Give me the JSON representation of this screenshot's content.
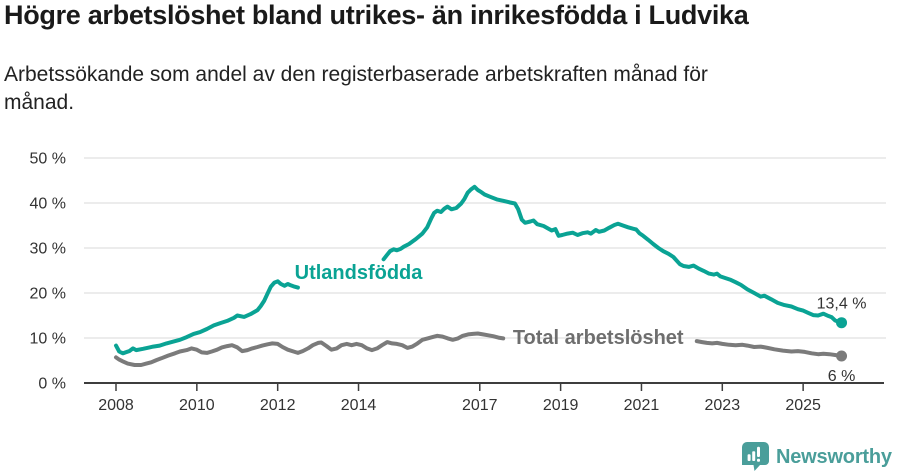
{
  "chart_data": {
    "type": "line",
    "title": "Högre arbetslöshet bland utrikes- än inrikesfödda i Ludvika",
    "subtitle": "Arbetssökande som andel av den registerbaserade arbetskraften månad för månad.",
    "xlim": [
      2007.2,
      2027.1
    ],
    "ylim": [
      0,
      50
    ],
    "grid": "horizontal",
    "legend": "inline-labels",
    "x_axis": {
      "ticks": [
        {
          "year": 2008,
          "label": "2008"
        },
        {
          "year": 2010,
          "label": "2010"
        },
        {
          "year": 2012,
          "label": "2012"
        },
        {
          "year": 2014,
          "label": "2014"
        },
        {
          "year": 2017,
          "label": "2017"
        },
        {
          "year": 2019,
          "label": "2019"
        },
        {
          "year": 2021,
          "label": "2021"
        },
        {
          "year": 2023,
          "label": "2023"
        },
        {
          "year": 2025,
          "label": "2025"
        }
      ]
    },
    "y_axis": {
      "ticks": [
        {
          "value": 0,
          "label": "0 %"
        },
        {
          "value": 10,
          "label": "10 %"
        },
        {
          "value": 20,
          "label": "20 %"
        },
        {
          "value": 30,
          "label": "30 %"
        },
        {
          "value": 40,
          "label": "40 %"
        },
        {
          "value": 50,
          "label": "50 %"
        }
      ]
    },
    "series": [
      {
        "id": "utlandsfodda",
        "name": "Utlandsfödda",
        "color": "#0aa394",
        "label": {
          "text": "Utlandsfödda",
          "year": 2014.0,
          "value": 24.7
        },
        "label_color": "#0aa394",
        "end_label": "13,4 %",
        "end_label_position": "above",
        "end_value": 13.4,
        "points": [
          [
            2008.0,
            8.3
          ],
          [
            2008.08,
            7.0
          ],
          [
            2008.17,
            6.6
          ],
          [
            2008.33,
            7.1
          ],
          [
            2008.42,
            7.7
          ],
          [
            2008.5,
            7.3
          ],
          [
            2008.67,
            7.6
          ],
          [
            2008.83,
            7.9
          ],
          [
            2008.92,
            8.1
          ],
          [
            2009.08,
            8.3
          ],
          [
            2009.25,
            8.8
          ],
          [
            2009.42,
            9.2
          ],
          [
            2009.58,
            9.6
          ],
          [
            2009.75,
            10.2
          ],
          [
            2009.92,
            10.9
          ],
          [
            2010.08,
            11.3
          ],
          [
            2010.25,
            12.0
          ],
          [
            2010.42,
            12.8
          ],
          [
            2010.58,
            13.3
          ],
          [
            2010.75,
            13.8
          ],
          [
            2010.92,
            14.5
          ],
          [
            2011.0,
            15.0
          ],
          [
            2011.17,
            14.7
          ],
          [
            2011.33,
            15.3
          ],
          [
            2011.5,
            16.2
          ],
          [
            2011.58,
            17.1
          ],
          [
            2011.67,
            18.3
          ],
          [
            2011.75,
            19.9
          ],
          [
            2011.83,
            21.4
          ],
          [
            2011.92,
            22.3
          ],
          [
            2012.0,
            22.6
          ],
          [
            2012.08,
            22.0
          ],
          [
            2012.17,
            21.6
          ],
          [
            2012.25,
            22.0
          ],
          [
            2012.33,
            21.7
          ],
          [
            2012.42,
            21.4
          ],
          [
            2012.5,
            21.2
          ],
          null,
          [
            2014.62,
            27.5
          ],
          [
            2014.7,
            28.4
          ],
          [
            2014.78,
            29.3
          ],
          [
            2014.87,
            29.7
          ],
          [
            2014.95,
            29.5
          ],
          [
            2015.04,
            29.8
          ],
          [
            2015.12,
            30.3
          ],
          [
            2015.25,
            30.9
          ],
          [
            2015.42,
            32.0
          ],
          [
            2015.58,
            33.2
          ],
          [
            2015.7,
            34.6
          ],
          [
            2015.8,
            36.6
          ],
          [
            2015.87,
            37.8
          ],
          [
            2015.95,
            38.3
          ],
          [
            2016.04,
            38.0
          ],
          [
            2016.12,
            38.7
          ],
          [
            2016.2,
            39.2
          ],
          [
            2016.3,
            38.6
          ],
          [
            2016.42,
            38.9
          ],
          [
            2016.54,
            39.9
          ],
          [
            2016.62,
            40.9
          ],
          [
            2016.7,
            42.3
          ],
          [
            2016.78,
            43.0
          ],
          [
            2016.87,
            43.6
          ],
          [
            2016.95,
            42.9
          ],
          [
            2017.04,
            42.4
          ],
          [
            2017.12,
            41.9
          ],
          [
            2017.25,
            41.4
          ],
          [
            2017.42,
            40.8
          ],
          [
            2017.58,
            40.5
          ],
          [
            2017.75,
            40.1
          ],
          [
            2017.87,
            39.9
          ],
          [
            2017.95,
            38.6
          ],
          [
            2018.04,
            36.3
          ],
          [
            2018.12,
            35.6
          ],
          [
            2018.25,
            35.9
          ],
          [
            2018.33,
            36.1
          ],
          [
            2018.42,
            35.3
          ],
          [
            2018.58,
            34.9
          ],
          [
            2018.7,
            34.3
          ],
          [
            2018.78,
            33.9
          ],
          [
            2018.87,
            34.2
          ],
          [
            2018.95,
            32.7
          ],
          [
            2019.04,
            32.9
          ],
          [
            2019.17,
            33.2
          ],
          [
            2019.3,
            33.4
          ],
          [
            2019.42,
            32.9
          ],
          [
            2019.54,
            33.3
          ],
          [
            2019.67,
            33.5
          ],
          [
            2019.75,
            33.2
          ],
          [
            2019.87,
            34.0
          ],
          [
            2019.95,
            33.6
          ],
          [
            2020.08,
            33.9
          ],
          [
            2020.2,
            34.5
          ],
          [
            2020.33,
            35.1
          ],
          [
            2020.42,
            35.4
          ],
          [
            2020.54,
            35.0
          ],
          [
            2020.67,
            34.6
          ],
          [
            2020.79,
            34.3
          ],
          [
            2020.87,
            34.1
          ],
          [
            2020.95,
            33.3
          ],
          [
            2021.04,
            32.7
          ],
          [
            2021.17,
            31.8
          ],
          [
            2021.29,
            30.9
          ],
          [
            2021.42,
            30.0
          ],
          [
            2021.54,
            29.3
          ],
          [
            2021.67,
            28.7
          ],
          [
            2021.79,
            28.0
          ],
          [
            2021.87,
            27.2
          ],
          [
            2021.95,
            26.4
          ],
          [
            2022.04,
            26.0
          ],
          [
            2022.17,
            25.8
          ],
          [
            2022.29,
            26.1
          ],
          [
            2022.42,
            25.4
          ],
          [
            2022.54,
            24.9
          ],
          [
            2022.67,
            24.3
          ],
          [
            2022.79,
            24.1
          ],
          [
            2022.87,
            24.3
          ],
          [
            2022.95,
            23.7
          ],
          [
            2023.08,
            23.3
          ],
          [
            2023.21,
            22.9
          ],
          [
            2023.33,
            22.4
          ],
          [
            2023.46,
            21.8
          ],
          [
            2023.62,
            20.8
          ],
          [
            2023.79,
            20.0
          ],
          [
            2023.95,
            19.2
          ],
          [
            2024.04,
            19.4
          ],
          [
            2024.21,
            18.6
          ],
          [
            2024.37,
            17.8
          ],
          [
            2024.54,
            17.3
          ],
          [
            2024.71,
            17.0
          ],
          [
            2024.87,
            16.4
          ],
          [
            2025.0,
            16.1
          ],
          [
            2025.12,
            15.6
          ],
          [
            2025.25,
            15.1
          ],
          [
            2025.37,
            15.0
          ],
          [
            2025.5,
            15.4
          ],
          [
            2025.62,
            14.9
          ],
          [
            2025.71,
            14.6
          ],
          [
            2025.79,
            13.9
          ],
          [
            2025.87,
            13.6
          ],
          [
            2025.95,
            13.4
          ]
        ]
      },
      {
        "id": "total-arbetsloshet",
        "name": "Total arbetslöshet",
        "color": "#7b7b7b",
        "label": {
          "text": "Total arbetslöshet",
          "year": 2019.93,
          "value": 10.2
        },
        "label_color": "#6e6e6e",
        "end_label": "6 %",
        "end_label_position": "below",
        "end_value": 6,
        "points": [
          [
            2008.0,
            5.7
          ],
          [
            2008.08,
            5.2
          ],
          [
            2008.17,
            4.8
          ],
          [
            2008.29,
            4.3
          ],
          [
            2008.46,
            4.0
          ],
          [
            2008.62,
            4.0
          ],
          [
            2008.75,
            4.3
          ],
          [
            2008.87,
            4.6
          ],
          [
            2009.0,
            5.1
          ],
          [
            2009.12,
            5.5
          ],
          [
            2009.29,
            6.1
          ],
          [
            2009.46,
            6.6
          ],
          [
            2009.58,
            7.0
          ],
          [
            2009.75,
            7.3
          ],
          [
            2009.87,
            7.7
          ],
          [
            2010.0,
            7.4
          ],
          [
            2010.12,
            6.8
          ],
          [
            2010.25,
            6.7
          ],
          [
            2010.37,
            7.0
          ],
          [
            2010.5,
            7.4
          ],
          [
            2010.62,
            7.9
          ],
          [
            2010.75,
            8.2
          ],
          [
            2010.87,
            8.4
          ],
          [
            2011.0,
            7.9
          ],
          [
            2011.12,
            7.1
          ],
          [
            2011.25,
            7.3
          ],
          [
            2011.37,
            7.7
          ],
          [
            2011.5,
            8.0
          ],
          [
            2011.62,
            8.3
          ],
          [
            2011.75,
            8.6
          ],
          [
            2011.87,
            8.8
          ],
          [
            2012.0,
            8.7
          ],
          [
            2012.12,
            8.0
          ],
          [
            2012.25,
            7.4
          ],
          [
            2012.42,
            6.9
          ],
          [
            2012.5,
            6.7
          ],
          [
            2012.62,
            7.1
          ],
          [
            2012.75,
            7.7
          ],
          [
            2012.87,
            8.4
          ],
          [
            2013.0,
            8.9
          ],
          [
            2013.08,
            9.0
          ],
          [
            2013.21,
            8.2
          ],
          [
            2013.33,
            7.4
          ],
          [
            2013.46,
            7.7
          ],
          [
            2013.58,
            8.4
          ],
          [
            2013.71,
            8.7
          ],
          [
            2013.83,
            8.4
          ],
          [
            2013.95,
            8.7
          ],
          [
            2014.08,
            8.4
          ],
          [
            2014.21,
            7.7
          ],
          [
            2014.33,
            7.3
          ],
          [
            2014.46,
            7.7
          ],
          [
            2014.58,
            8.4
          ],
          [
            2014.71,
            9.1
          ],
          [
            2014.83,
            8.8
          ],
          [
            2014.95,
            8.7
          ],
          [
            2015.08,
            8.4
          ],
          [
            2015.21,
            7.8
          ],
          [
            2015.33,
            8.1
          ],
          [
            2015.46,
            8.8
          ],
          [
            2015.58,
            9.6
          ],
          [
            2015.71,
            9.9
          ],
          [
            2015.83,
            10.2
          ],
          [
            2015.95,
            10.5
          ],
          [
            2016.08,
            10.3
          ],
          [
            2016.21,
            9.9
          ],
          [
            2016.33,
            9.6
          ],
          [
            2016.46,
            9.9
          ],
          [
            2016.58,
            10.5
          ],
          [
            2016.71,
            10.8
          ],
          [
            2016.83,
            10.9
          ],
          [
            2016.95,
            11.0
          ],
          [
            2017.08,
            10.8
          ],
          [
            2017.21,
            10.6
          ],
          [
            2017.33,
            10.4
          ],
          [
            2017.46,
            10.1
          ],
          [
            2017.58,
            9.9
          ],
          null,
          [
            2022.37,
            9.3
          ],
          [
            2022.5,
            9.1
          ],
          [
            2022.62,
            8.9
          ],
          [
            2022.75,
            8.8
          ],
          [
            2022.87,
            8.9
          ],
          [
            2023.0,
            8.7
          ],
          [
            2023.17,
            8.5
          ],
          [
            2023.33,
            8.4
          ],
          [
            2023.5,
            8.5
          ],
          [
            2023.62,
            8.3
          ],
          [
            2023.79,
            8.0
          ],
          [
            2023.95,
            8.1
          ],
          [
            2024.12,
            7.8
          ],
          [
            2024.29,
            7.5
          ],
          [
            2024.5,
            7.2
          ],
          [
            2024.71,
            7.0
          ],
          [
            2024.87,
            7.1
          ],
          [
            2025.04,
            6.9
          ],
          [
            2025.21,
            6.6
          ],
          [
            2025.37,
            6.4
          ],
          [
            2025.5,
            6.5
          ],
          [
            2025.65,
            6.4
          ],
          [
            2025.81,
            6.2
          ],
          [
            2025.95,
            6.0
          ]
        ]
      }
    ]
  },
  "colors": {
    "accent_teal": "#0aa394",
    "line_gray": "#7b7b7b",
    "gridline": "#e0e0e0",
    "axis": "#3d3d3d",
    "text_dark": "#333333",
    "brand_teal": "#4a9e9a"
  },
  "footer": {
    "brand": "Newsworthy",
    "logo_icon": "newsworthy-speech-bubble-bar-chart-icon"
  }
}
